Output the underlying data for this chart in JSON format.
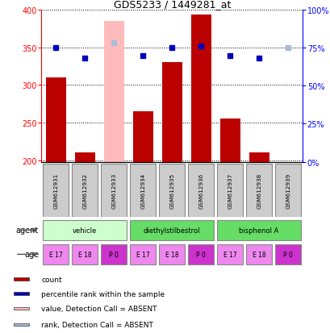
{
  "title": "GDS5233 / 1449281_at",
  "samples": [
    "GSM612931",
    "GSM612932",
    "GSM612933",
    "GSM612934",
    "GSM612935",
    "GSM612936",
    "GSM612937",
    "GSM612938",
    "GSM612939"
  ],
  "count_values": [
    310,
    210,
    null,
    265,
    330,
    393,
    255,
    210,
    null
  ],
  "count_absent": [
    null,
    null,
    385,
    null,
    null,
    null,
    null,
    null,
    null
  ],
  "rank_values": [
    75,
    68,
    null,
    70,
    75,
    76,
    70,
    68,
    null
  ],
  "rank_absent": [
    null,
    null,
    78,
    null,
    null,
    null,
    null,
    null,
    75
  ],
  "ylim_left": [
    198,
    400
  ],
  "ylim_right": [
    0,
    100
  ],
  "yticks_left": [
    200,
    250,
    300,
    350,
    400
  ],
  "yticks_right": [
    0,
    25,
    50,
    75,
    100
  ],
  "ytick_labels_right": [
    "0%",
    "25%",
    "50%",
    "75%",
    "100%"
  ],
  "bar_color": "#bb0000",
  "bar_absent_color": "#ffbbbb",
  "rank_color": "#0000bb",
  "rank_absent_color": "#aabbdd",
  "agent_groups": [
    {
      "label": "vehicle",
      "cols": [
        0,
        1,
        2
      ],
      "color": "#ccffcc"
    },
    {
      "label": "diethylstilbestrol",
      "cols": [
        3,
        4,
        5
      ],
      "color": "#66dd66"
    },
    {
      "label": "bisphenol A",
      "cols": [
        6,
        7,
        8
      ],
      "color": "#66dd66"
    }
  ],
  "age_groups": [
    {
      "label": "E 17",
      "color": "#ee88ee"
    },
    {
      "label": "E 18",
      "color": "#ee88ee"
    },
    {
      "label": "P 0",
      "color": "#cc33cc"
    },
    {
      "label": "E 17",
      "color": "#ee88ee"
    },
    {
      "label": "E 18",
      "color": "#ee88ee"
    },
    {
      "label": "P 0",
      "color": "#cc33cc"
    },
    {
      "label": "E 17",
      "color": "#ee88ee"
    },
    {
      "label": "E 18",
      "color": "#ee88ee"
    },
    {
      "label": "P 0",
      "color": "#cc33cc"
    }
  ],
  "legend_items": [
    {
      "label": "count",
      "color": "#bb0000"
    },
    {
      "label": "percentile rank within the sample",
      "color": "#0000bb"
    },
    {
      "label": "value, Detection Call = ABSENT",
      "color": "#ffbbbb"
    },
    {
      "label": "rank, Detection Call = ABSENT",
      "color": "#aabbdd"
    }
  ],
  "bg_color": "#ffffff"
}
